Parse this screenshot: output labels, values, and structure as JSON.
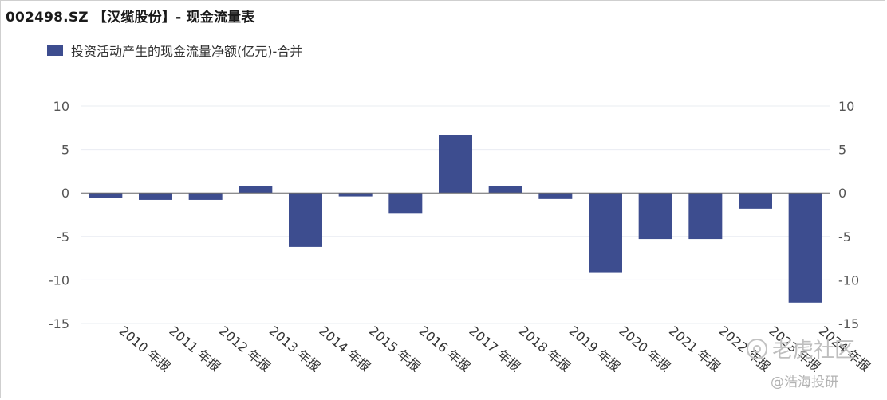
{
  "title": "002498.SZ 【汉缆股份】- 现金流量表",
  "watermark": {
    "line1": "老虎社区",
    "line2": "@浩海投研"
  },
  "chart_data": {
    "type": "bar",
    "title": "002498.SZ 【汉缆股份】- 现金流量表",
    "categories": [
      "2010 年报",
      "2011 年报",
      "2012 年报",
      "2013 年报",
      "2014 年报",
      "2015 年报",
      "2016 年报",
      "2017 年报",
      "2018 年报",
      "2019 年报",
      "2020 年报",
      "2021 年报",
      "2022 年报",
      "2023 年报",
      "2024 年报"
    ],
    "series": [
      {
        "name": "投资活动产生的现金流量净额(亿元)-合并",
        "color": "#3d4d8f",
        "values": [
          -0.6,
          -0.8,
          -0.8,
          0.8,
          -6.2,
          -0.4,
          -2.3,
          6.7,
          0.8,
          -0.7,
          -9.1,
          -5.3,
          -5.3,
          -1.8,
          -12.6
        ]
      }
    ],
    "ylim": [
      -15,
      10
    ],
    "yticks": [
      10,
      5,
      0,
      -5,
      -10,
      -15
    ],
    "y_axis_both_sides": true,
    "grid": true,
    "legend": "top-left",
    "xlabel": "",
    "ylabel": ""
  }
}
